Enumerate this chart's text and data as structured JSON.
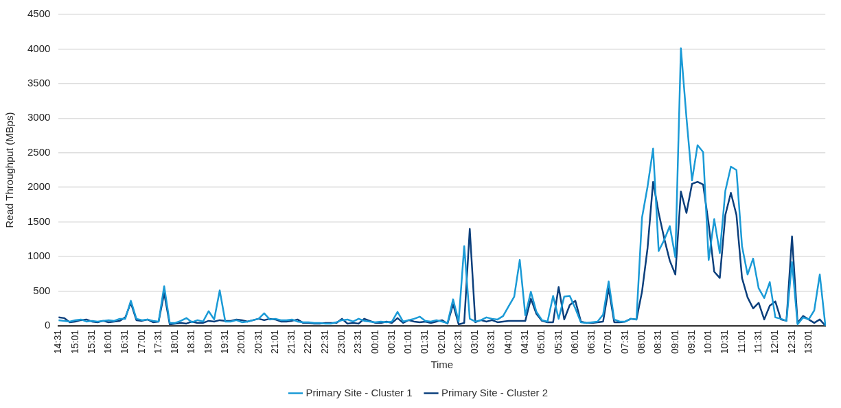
{
  "chart_data": {
    "type": "line",
    "xlabel": "Time",
    "ylabel": "Read Throughput (MBps)",
    "categories": [
      "14:31",
      null,
      null,
      "15:01",
      null,
      null,
      "15:31",
      null,
      null,
      "16:01",
      null,
      null,
      "16:31",
      null,
      null,
      "17:01",
      null,
      null,
      "17:31",
      null,
      null,
      "18:01",
      null,
      null,
      "18:31",
      null,
      null,
      "19:01",
      null,
      null,
      "19:31",
      null,
      null,
      "20:01",
      null,
      null,
      "20:31",
      null,
      null,
      "21:01",
      null,
      null,
      "21:31",
      null,
      null,
      "22:01",
      null,
      null,
      "22:31",
      null,
      null,
      "23:01",
      null,
      null,
      "23:31",
      null,
      null,
      "00:01",
      null,
      null,
      "00:31",
      null,
      null,
      "01:01",
      null,
      null,
      "01:31",
      null,
      null,
      "02:01",
      null,
      null,
      "02:31",
      null,
      null,
      "03:01",
      null,
      null,
      "03:31",
      null,
      null,
      "04:01",
      null,
      null,
      "04:31",
      null,
      null,
      "05:01",
      null,
      null,
      "05:31",
      null,
      null,
      "06:01",
      null,
      null,
      "06:31",
      null,
      null,
      "07:01",
      null,
      null,
      "07:31",
      null,
      null,
      "08:01",
      null,
      null,
      "08:31",
      null,
      null,
      "09:01",
      null,
      null,
      "09:31",
      null,
      null,
      "10:01",
      null,
      null,
      "10:31",
      null,
      null,
      "11:01",
      null,
      null,
      "11:31",
      null,
      null,
      "12:01",
      null,
      null,
      "12:31",
      null,
      null,
      "13:01",
      null,
      null,
      null
    ],
    "series": [
      {
        "name": "Primary Site - Cluster 1",
        "color": "#1a9ad6",
        "values": [
          80,
          70,
          60,
          80,
          90,
          60,
          70,
          60,
          70,
          80,
          70,
          100,
          100,
          360,
          100,
          80,
          90,
          70,
          60,
          570,
          40,
          40,
          70,
          110,
          50,
          80,
          60,
          210,
          90,
          510,
          60,
          60,
          80,
          50,
          60,
          80,
          100,
          180,
          90,
          100,
          80,
          80,
          90,
          60,
          50,
          50,
          40,
          40,
          30,
          30,
          50,
          80,
          90,
          60,
          100,
          70,
          60,
          50,
          60,
          50,
          60,
          200,
          60,
          80,
          100,
          130,
          70,
          60,
          80,
          60,
          40,
          380,
          60,
          1150,
          100,
          60,
          80,
          120,
          100,
          90,
          140,
          280,
          420,
          950,
          150,
          490,
          200,
          80,
          60,
          430,
          100,
          420,
          430,
          250,
          50,
          40,
          50,
          60,
          160,
          640,
          90,
          60,
          60,
          100,
          90,
          1560,
          2010,
          2560,
          1080,
          1240,
          1440,
          990,
          4010,
          3010,
          2100,
          2610,
          2510,
          950,
          1540,
          1050,
          1950,
          2300,
          2250,
          1150,
          740,
          970,
          540,
          400,
          630,
          120,
          100,
          70,
          920,
          20,
          120,
          90,
          220,
          740,
          0
        ]
      },
      {
        "name": "Primary Site - Cluster 2",
        "color": "#0b3f7c",
        "values": [
          120,
          110,
          50,
          60,
          80,
          90,
          60,
          50,
          70,
          50,
          60,
          70,
          120,
          330,
          80,
          70,
          90,
          50,
          60,
          470,
          20,
          30,
          40,
          30,
          60,
          40,
          40,
          70,
          60,
          80,
          70,
          70,
          90,
          80,
          60,
          80,
          100,
          80,
          100,
          90,
          60,
          60,
          70,
          90,
          40,
          40,
          30,
          30,
          40,
          40,
          40,
          100,
          30,
          40,
          30,
          100,
          70,
          40,
          40,
          60,
          40,
          110,
          40,
          80,
          60,
          50,
          60,
          40,
          60,
          80,
          30,
          310,
          20,
          40,
          1400,
          50,
          80,
          60,
          80,
          50,
          60,
          70,
          70,
          70,
          70,
          390,
          170,
          70,
          50,
          50,
          560,
          90,
          300,
          360,
          60,
          40,
          40,
          50,
          60,
          540,
          50,
          50,
          60,
          100,
          90,
          490,
          1120,
          2080,
          1630,
          1260,
          940,
          740,
          1940,
          1630,
          2050,
          2080,
          2040,
          1470,
          780,
          690,
          1600,
          1920,
          1600,
          690,
          410,
          250,
          330,
          90,
          290,
          350,
          90,
          70,
          1290,
          40,
          140,
          90,
          40,
          90,
          0
        ]
      }
    ],
    "ylim": [
      0,
      4500
    ],
    "yticks": [
      0,
      500,
      1000,
      1500,
      2000,
      2500,
      3000,
      3500,
      4000,
      4500
    ],
    "grid": "y",
    "legend": "bottom",
    "marker": "none",
    "line_style": "solid"
  }
}
